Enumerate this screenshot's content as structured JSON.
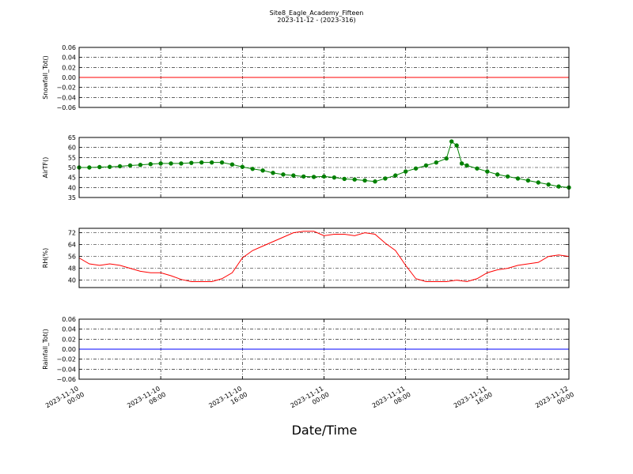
{
  "title": "Site8_Eagle_Academy_Fifteen",
  "subtitle": "2023-11-12 - (2023-316)",
  "xlabel": "Date/Time",
  "chart_data": [
    {
      "type": "line",
      "ylabel": "Snowfall_Tot()",
      "color": "#ff0000",
      "x": [
        "2023-11-10 00:00",
        "2023-11-12 00:00"
      ],
      "values": [
        0,
        0
      ],
      "xlim": [
        "2023-11-10 00:00",
        "2023-11-12 00:00"
      ],
      "xticks": [
        "2023-11-10 00:00",
        "2023-11-10 08:00",
        "2023-11-10 16:00",
        "2023-11-11 00:00",
        "2023-11-11 08:00",
        "2023-11-11 16:00",
        "2023-11-12 00:00"
      ],
      "ylim": [
        -0.06,
        0.06
      ],
      "yticks": [
        {
          "value": -0.06,
          "label": "−0.06"
        },
        {
          "value": -0.04,
          "label": "−0.04"
        },
        {
          "value": -0.02,
          "label": "−0.02"
        },
        {
          "value": 0,
          "label": "0.00"
        },
        0.02,
        0.04,
        0.06
      ],
      "grid": true
    },
    {
      "type": "line",
      "ylabel": "AirTF()",
      "color": "#008000",
      "markers": true,
      "x": [
        "2023-11-10 00:00",
        "2023-11-10 01:00",
        "2023-11-10 02:00",
        "2023-11-10 03:00",
        "2023-11-10 04:00",
        "2023-11-10 05:00",
        "2023-11-10 06:00",
        "2023-11-10 07:00",
        "2023-11-10 08:00",
        "2023-11-10 09:00",
        "2023-11-10 10:00",
        "2023-11-10 11:00",
        "2023-11-10 12:00",
        "2023-11-10 13:00",
        "2023-11-10 14:00",
        "2023-11-10 15:00",
        "2023-11-10 16:00",
        "2023-11-10 17:00",
        "2023-11-10 18:00",
        "2023-11-10 19:00",
        "2023-11-10 20:00",
        "2023-11-10 21:00",
        "2023-11-10 22:00",
        "2023-11-10 23:00",
        "2023-11-11 00:00",
        "2023-11-11 01:00",
        "2023-11-11 02:00",
        "2023-11-11 03:00",
        "2023-11-11 04:00",
        "2023-11-11 05:00",
        "2023-11-11 06:00",
        "2023-11-11 07:00",
        "2023-11-11 08:00",
        "2023-11-11 09:00",
        "2023-11-11 10:00",
        "2023-11-11 11:00",
        "2023-11-11 12:00",
        "2023-11-11 12:30",
        "2023-11-11 13:00",
        "2023-11-11 13:30",
        "2023-11-11 14:00",
        "2023-11-11 15:00",
        "2023-11-11 16:00",
        "2023-11-11 17:00",
        "2023-11-11 18:00",
        "2023-11-11 19:00",
        "2023-11-11 20:00",
        "2023-11-11 21:00",
        "2023-11-11 22:00",
        "2023-11-11 23:00",
        "2023-11-12 00:00"
      ],
      "values": [
        50,
        50,
        50.2,
        50.3,
        50.6,
        51,
        51.3,
        51.7,
        52,
        52,
        52,
        52.3,
        52.5,
        52.5,
        52.5,
        51.5,
        50.3,
        49.3,
        48.5,
        47.3,
        46.5,
        46,
        45.5,
        45.3,
        45.5,
        45,
        44.3,
        44,
        43.5,
        43,
        44.5,
        46,
        48,
        49.5,
        51,
        52.5,
        54.5,
        63,
        61,
        52,
        51,
        49.5,
        48,
        46.5,
        45.5,
        44.5,
        43.5,
        42.5,
        41.5,
        40.5,
        40
      ],
      "xlim": [
        "2023-11-10 00:00",
        "2023-11-12 00:00"
      ],
      "xticks": [
        "2023-11-10 00:00",
        "2023-11-10 08:00",
        "2023-11-10 16:00",
        "2023-11-11 00:00",
        "2023-11-11 08:00",
        "2023-11-11 16:00",
        "2023-11-12 00:00"
      ],
      "ylim": [
        35,
        65
      ],
      "yticks": [
        35,
        40,
        45,
        50,
        55,
        60,
        65
      ],
      "grid": true
    },
    {
      "type": "line",
      "ylabel": "RH(%)",
      "color": "#ff0000",
      "x": [
        "2023-11-10 00:00",
        "2023-11-10 01:00",
        "2023-11-10 02:00",
        "2023-11-10 03:00",
        "2023-11-10 04:00",
        "2023-11-10 05:00",
        "2023-11-10 06:00",
        "2023-11-10 07:00",
        "2023-11-10 08:00",
        "2023-11-10 09:00",
        "2023-11-10 10:00",
        "2023-11-10 11:00",
        "2023-11-10 12:00",
        "2023-11-10 13:00",
        "2023-11-10 14:00",
        "2023-11-10 15:00",
        "2023-11-10 16:00",
        "2023-11-10 17:00",
        "2023-11-10 18:00",
        "2023-11-10 19:00",
        "2023-11-10 20:00",
        "2023-11-10 21:00",
        "2023-11-10 22:00",
        "2023-11-10 23:00",
        "2023-11-11 00:00",
        "2023-11-11 01:00",
        "2023-11-11 02:00",
        "2023-11-11 03:00",
        "2023-11-11 04:00",
        "2023-11-11 05:00",
        "2023-11-11 06:00",
        "2023-11-11 07:00",
        "2023-11-11 08:00",
        "2023-11-11 09:00",
        "2023-11-11 10:00",
        "2023-11-11 11:00",
        "2023-11-11 12:00",
        "2023-11-11 13:00",
        "2023-11-11 14:00",
        "2023-11-11 15:00",
        "2023-11-11 16:00",
        "2023-11-11 17:00",
        "2023-11-11 18:00",
        "2023-11-11 19:00",
        "2023-11-11 20:00",
        "2023-11-11 21:00",
        "2023-11-11 22:00",
        "2023-11-11 23:00",
        "2023-11-12 00:00"
      ],
      "values": [
        55,
        51,
        50,
        51,
        50,
        48,
        46,
        45,
        45,
        43,
        40.5,
        39,
        39,
        39,
        41,
        45,
        55,
        60,
        63,
        66,
        69,
        72,
        73,
        73,
        70,
        71,
        71,
        70,
        72,
        71,
        65,
        60,
        50,
        41,
        39,
        39,
        39,
        40,
        39,
        41,
        45,
        47,
        48,
        50,
        51,
        52,
        56,
        57,
        56
      ],
      "xlim": [
        "2023-11-10 00:00",
        "2023-11-12 00:00"
      ],
      "xticks": [
        "2023-11-10 00:00",
        "2023-11-10 08:00",
        "2023-11-10 16:00",
        "2023-11-11 00:00",
        "2023-11-11 08:00",
        "2023-11-11 16:00",
        "2023-11-12 00:00"
      ],
      "ylim": [
        35,
        75
      ],
      "yticks": [
        40,
        48,
        56,
        64,
        72
      ],
      "grid": true
    },
    {
      "type": "line",
      "ylabel": "Rainfall_Tot()",
      "color": "#0000ff",
      "x": [
        "2023-11-10 00:00",
        "2023-11-12 00:00"
      ],
      "values": [
        0,
        0
      ],
      "xlim": [
        "2023-11-10 00:00",
        "2023-11-12 00:00"
      ],
      "xticks": [
        "2023-11-10 00:00",
        "2023-11-10 08:00",
        "2023-11-10 16:00",
        "2023-11-11 00:00",
        "2023-11-11 08:00",
        "2023-11-11 16:00",
        "2023-11-12 00:00"
      ],
      "ylim": [
        -0.06,
        0.06
      ],
      "yticks": [
        {
          "value": -0.06,
          "label": "−0.06"
        },
        {
          "value": -0.04,
          "label": "−0.04"
        },
        {
          "value": -0.02,
          "label": "−0.02"
        },
        {
          "value": 0,
          "label": "0.00"
        },
        0.02,
        0.04,
        0.06
      ],
      "grid": true,
      "show_xtick_labels": true
    }
  ]
}
